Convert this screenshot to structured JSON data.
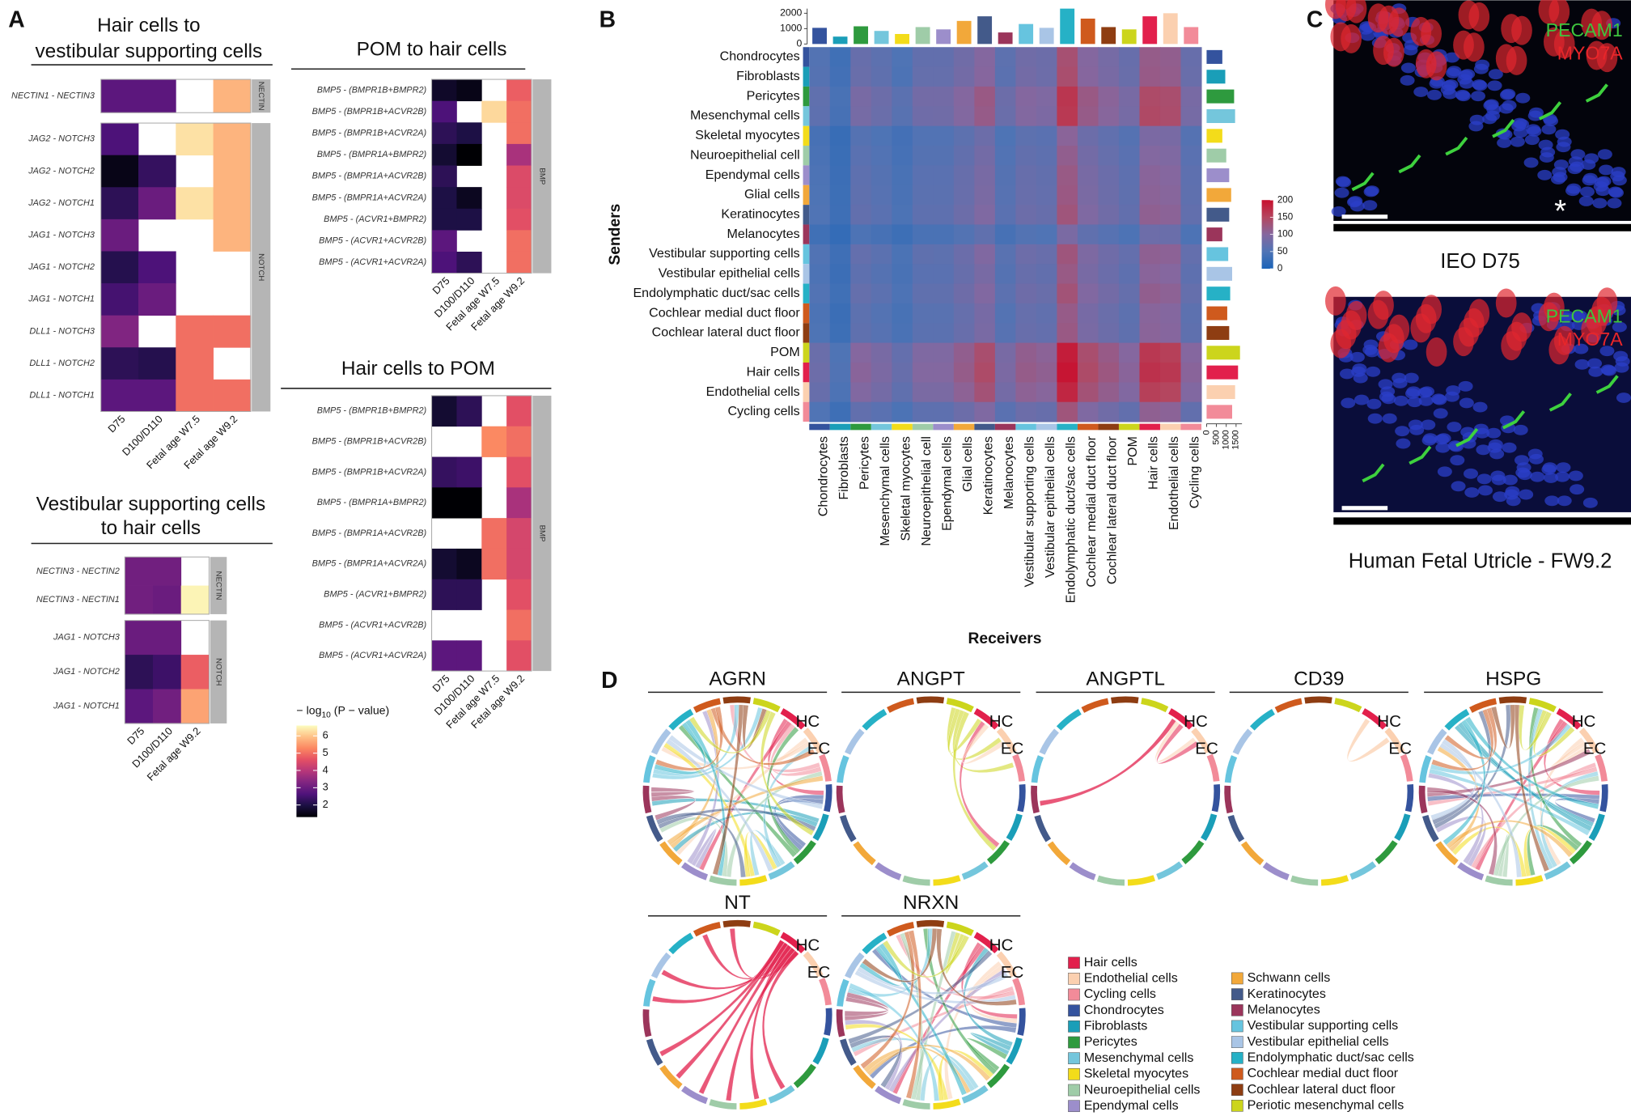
{
  "panel_labels": [
    "A",
    "B",
    "C",
    "D"
  ],
  "chart_data": [
    {
      "type": "heatmap",
      "title": [
        "Hair cells to",
        "vestibular supporting cells"
      ],
      "columns": [
        "D75",
        "D100/D110",
        "Fetal age W7.5",
        "Fetal age W9.2"
      ],
      "groups": [
        {
          "name": "NECTIN",
          "rows": [
            "NECTIN1 - NECTIN3"
          ],
          "values": [
            [
              2.8,
              2.8,
              null,
              5.8
            ]
          ]
        },
        {
          "name": "NOTCH",
          "rows": [
            "JAG2 - NOTCH3",
            "JAG2 - NOTCH2",
            "JAG2 - NOTCH1",
            "JAG1 - NOTCH3",
            "JAG1 - NOTCH2",
            "JAG1 - NOTCH1",
            "DLL1 - NOTCH3",
            "DLL1 - NOTCH2",
            "DLL1 - NOTCH1"
          ],
          "values": [
            [
              2.6,
              null,
              6.3,
              5.8
            ],
            [
              1.5,
              2.3,
              null,
              5.8
            ],
            [
              2.2,
              3.0,
              6.3,
              5.8
            ],
            [
              3.0,
              null,
              null,
              5.8
            ],
            [
              2.1,
              2.6,
              null,
              null
            ],
            [
              2.5,
              3.0,
              null,
              null
            ],
            [
              3.3,
              null,
              5.0,
              5.0
            ],
            [
              2.2,
              2.1,
              5.0,
              null
            ],
            [
              2.8,
              2.8,
              5.0,
              5.0
            ]
          ]
        }
      ]
    },
    {
      "type": "heatmap",
      "title": [
        "POM to hair cells"
      ],
      "columns": [
        "D75",
        "D100/D110",
        "Fetal age W7.5",
        "Fetal age W9.2"
      ],
      "groups": [
        {
          "name": "BMP",
          "rows": [
            "BMP5 - (BMPR1B+BMPR2)",
            "BMP5 - (BMPR1B+ACVR2B)",
            "BMP5 - (BMPR1B+ACVR2A)",
            "BMP5 - (BMPR1A+BMPR2)",
            "BMP5 - (BMPR1A+ACVR2B)",
            "BMP5 - (BMPR1A+ACVR2A)",
            "BMP5 - (ACVR1+BMPR2)",
            "BMP5 - (ACVR1+ACVR2B)",
            "BMP5 - (ACVR1+ACVR2A)"
          ],
          "values": [
            [
              1.7,
              1.5,
              null,
              4.8
            ],
            [
              2.6,
              null,
              6.2,
              5.0
            ],
            [
              2.2,
              2.0,
              null,
              5.0
            ],
            [
              1.8,
              1.3,
              null,
              3.8
            ],
            [
              2.2,
              null,
              null,
              4.5
            ],
            [
              2.0,
              1.6,
              null,
              4.5
            ],
            [
              2.0,
              2.0,
              null,
              4.6
            ],
            [
              2.8,
              null,
              null,
              5.0
            ],
            [
              2.6,
              2.2,
              null,
              5.0
            ]
          ]
        }
      ]
    },
    {
      "type": "heatmap",
      "title": [
        "Hair cells to POM"
      ],
      "columns": [
        "D75",
        "D100/D110",
        "Fetal age W7.5",
        "Fetal age W9.2"
      ],
      "groups": [
        {
          "name": "BMP",
          "rows": [
            "BMP5 - (BMPR1B+BMPR2)",
            "BMP5 - (BMPR1B+ACVR2B)",
            "BMP5 - (BMPR1B+ACVR2A)",
            "BMP5 - (BMPR1A+BMPR2)",
            "BMP5 - (BMPR1A+ACVR2B)",
            "BMP5 - (BMPR1A+ACVR2A)",
            "BMP5 - (ACVR1+BMPR2)",
            "BMP5 - (ACVR1+ACVR2B)",
            "BMP5 - (ACVR1+ACVR2A)"
          ],
          "values": [
            [
              1.8,
              2.2,
              null,
              4.6
            ],
            [
              null,
              null,
              5.3,
              5.0
            ],
            [
              2.3,
              2.4,
              null,
              4.6
            ],
            [
              1.2,
              1.2,
              null,
              3.8
            ],
            [
              null,
              null,
              5.0,
              4.4
            ],
            [
              1.8,
              1.6,
              5.0,
              4.4
            ],
            [
              2.2,
              2.2,
              null,
              4.6
            ],
            [
              null,
              null,
              null,
              5.0
            ],
            [
              2.8,
              2.8,
              null,
              4.6
            ]
          ]
        }
      ]
    },
    {
      "type": "heatmap",
      "title": [
        "Vestibular supporting cells",
        "to hair cells"
      ],
      "columns": [
        "D75",
        "D100/D110",
        "Fetal age W9.2"
      ],
      "groups": [
        {
          "name": "NECTIN",
          "rows": [
            "NECTIN3 - NECTIN2",
            "NECTIN3 - NECTIN1"
          ],
          "values": [
            [
              3.1,
              3.1,
              null
            ],
            [
              3.1,
              3.0,
              6.5
            ]
          ]
        },
        {
          "name": "NOTCH",
          "rows": [
            "JAG1 - NOTCH3",
            "JAG1 - NOTCH2",
            "JAG1 - NOTCH1"
          ],
          "values": [
            [
              3.0,
              3.0,
              null
            ],
            [
              2.2,
              2.4,
              4.8
            ],
            [
              2.8,
              3.1,
              5.6
            ]
          ]
        }
      ]
    },
    {
      "type": "heatmap",
      "y_label": "Senders",
      "x_label": "Receivers",
      "rows": [
        "Chondrocytes",
        "Fibroblasts",
        "Pericytes",
        "Mesenchymal cells",
        "Skeletal myocytes",
        "Neuroepithelial cell",
        "Ependymal cells",
        "Glial cells",
        "Keratinocytes",
        "Melanocytes",
        "Vestibular supporting cells",
        "Vestibular epithelial cells",
        "Endolymphatic duct/sac cells",
        "Cochlear medial duct floor",
        "Cochlear lateral duct floor",
        "POM",
        "Hair cells",
        "Endothelial cells",
        "Cycling cells"
      ],
      "columns": [
        "Chondrocytes",
        "Fibroblasts",
        "Pericytes",
        "Mesenchymal cells",
        "Skeletal myocytes",
        "Neuroepithelial cell",
        "Ependymal cells",
        "Glial cells",
        "Keratinocytes",
        "Melanocytes",
        "Vestibular supporting cells",
        "Vestibular epithelial cells",
        "Endolymphatic duct/sac cells",
        "Cochlear medial duct floor",
        "Cochlear lateral duct floor",
        "POM",
        "Hair cells",
        "Endothelial cells",
        "Cycling cells"
      ],
      "colors": [
        "#34539e",
        "#1a9eb8",
        "#2e9a3e",
        "#74c6dc",
        "#f3dc1a",
        "#9fcca8",
        "#9c8ecb",
        "#f2a83a",
        "#435a8a",
        "#9b355b",
        "#66c4df",
        "#a9c5e6",
        "#26b1c6",
        "#cf5a1d",
        "#8e3d12",
        "#ccd51c",
        "#e2204c",
        "#fbd0b0",
        "#f28b99"
      ],
      "values": [
        [
          54,
          36,
          72,
          63,
          50,
          68,
          68,
          81,
          99,
          63,
          81,
          77,
          135,
          99,
          86,
          72,
          117,
          113,
          72
        ],
        [
          56,
          38,
          74,
          65,
          48,
          70,
          70,
          83,
          101,
          61,
          83,
          78,
          138,
          101,
          88,
          74,
          119,
          115,
          74
        ],
        [
          66,
          44,
          88,
          77,
          61,
          83,
          83,
          99,
          121,
          77,
          99,
          94,
          165,
          121,
          105,
          88,
          143,
          138,
          88
        ],
        [
          64,
          42,
          86,
          75,
          58,
          80,
          81,
          97,
          118,
          75,
          97,
          92,
          162,
          118,
          102,
          86,
          145,
          140,
          86
        ],
        [
          42,
          28,
          56,
          49,
          39,
          53,
          53,
          63,
          77,
          49,
          63,
          60,
          105,
          77,
          67,
          56,
          91,
          88,
          56
        ],
        [
          45,
          30,
          60,
          53,
          41,
          56,
          56,
          68,
          83,
          53,
          68,
          64,
          113,
          83,
          71,
          60,
          98,
          94,
          60
        ],
        [
          48,
          32,
          64,
          56,
          44,
          60,
          60,
          72,
          88,
          56,
          72,
          68,
          120,
          88,
          76,
          64,
          104,
          100,
          64
        ],
        [
          49,
          33,
          65,
          57,
          45,
          61,
          61,
          73,
          90,
          57,
          73,
          69,
          122,
          90,
          77,
          65,
          106,
          102,
          65
        ],
        [
          51,
          34,
          68,
          60,
          47,
          64,
          64,
          77,
          94,
          60,
          77,
          72,
          128,
          94,
          81,
          68,
          111,
          106,
          68
        ],
        [
          36,
          24,
          48,
          42,
          33,
          45,
          45,
          54,
          66,
          42,
          54,
          51,
          90,
          66,
          57,
          48,
          78,
          75,
          48
        ],
        [
          52,
          35,
          69,
          61,
          46,
          65,
          63,
          76,
          95,
          59,
          78,
          73,
          127,
          93,
          80,
          69,
          110,
          107,
          69
        ],
        [
          48,
          32,
          64,
          56,
          44,
          60,
          60,
          72,
          88,
          56,
          72,
          68,
          120,
          88,
          76,
          64,
          104,
          100,
          64
        ],
        [
          53,
          36,
          70,
          62,
          48,
          66,
          66,
          79,
          96,
          62,
          79,
          74,
          131,
          96,
          83,
          70,
          113,
          108,
          70
        ],
        [
          47,
          31,
          63,
          55,
          43,
          59,
          59,
          71,
          87,
          55,
          71,
          67,
          118,
          87,
          75,
          63,
          103,
          99,
          63
        ],
        [
          49,
          33,
          65,
          57,
          45,
          61,
          61,
          73,
          89,
          57,
          73,
          69,
          121,
          89,
          77,
          65,
          105,
          101,
          65
        ],
        [
          75,
          50,
          100,
          88,
          69,
          94,
          94,
          113,
          138,
          88,
          113,
          106,
          188,
          138,
          119,
          100,
          163,
          156,
          100
        ],
        [
          78,
          52,
          104,
          91,
          72,
          98,
          98,
          117,
          143,
          91,
          117,
          111,
          195,
          143,
          124,
          104,
          169,
          163,
          104
        ],
        [
          72,
          48,
          96,
          84,
          66,
          90,
          90,
          108,
          132,
          84,
          108,
          102,
          180,
          132,
          114,
          96,
          156,
          150,
          96
        ],
        [
          51,
          34,
          68,
          60,
          47,
          64,
          64,
          77,
          94,
          60,
          77,
          72,
          128,
          94,
          81,
          68,
          111,
          106,
          68
        ]
      ],
      "zlim": [
        0,
        200
      ],
      "zticks": [
        0,
        50,
        100,
        150,
        200
      ]
    },
    {
      "type": "bar",
      "values": [
        1050,
        480,
        1150,
        850,
        650,
        1100,
        950,
        1500,
        1800,
        750,
        1300,
        1050,
        2300,
        1650,
        1100,
        950,
        1800,
        2000,
        1100
      ],
      "ylim": [
        0,
        2300
      ],
      "yticks": [
        0,
        1000,
        2000
      ]
    },
    {
      "type": "barh",
      "values": [
        800,
        950,
        1400,
        1450,
        800,
        1000,
        1150,
        1250,
        1150,
        800,
        1100,
        1300,
        1200,
        1050,
        1150,
        1700,
        1600,
        1450,
        1300
      ],
      "xlim": [
        0,
        1800
      ],
      "xticks": [
        0,
        500,
        1000,
        1500
      ]
    }
  ],
  "panel_a_scale": {
    "title_prefix": "− log",
    "title_subscript": "10",
    "title_suffix": " (P − value)",
    "zlim": [
      1.3,
      6.6
    ],
    "zticks": [
      2,
      3,
      4,
      5,
      6
    ]
  },
  "panel_c": {
    "images": [
      {
        "labels": [
          "PECAM1",
          "MYO7A"
        ],
        "marker": "*",
        "caption": "IEO D75"
      },
      {
        "labels": [
          "PECAM1",
          "MYO7A"
        ],
        "caption": "Human Fetal Utricle - FW9.2"
      }
    ]
  },
  "panel_d": {
    "chords": [
      {
        "title": "AGRN"
      },
      {
        "title": "ANGPT"
      },
      {
        "title": "ANGPTL"
      },
      {
        "title": "CD39"
      },
      {
        "title": "HSPG"
      },
      {
        "title": "NT"
      },
      {
        "title": "NRXN"
      }
    ],
    "ring_labels": [
      "HC",
      "EC"
    ],
    "legend": [
      {
        "name": "Hair cells",
        "color": "#e2204c"
      },
      {
        "name": "Endothelial cells",
        "color": "#fbd0b0"
      },
      {
        "name": "Cycling cells",
        "color": "#f28b99"
      },
      {
        "name": "Chondrocytes",
        "color": "#34539e"
      },
      {
        "name": "Fibroblasts",
        "color": "#1a9eb8"
      },
      {
        "name": "Pericytes",
        "color": "#2e9a3e"
      },
      {
        "name": "Mesenchymal cells",
        "color": "#74c6dc"
      },
      {
        "name": "Skeletal myocytes",
        "color": "#f3dc1a"
      },
      {
        "name": "Neuroepithelial cells",
        "color": "#9fcca8"
      },
      {
        "name": "Ependymal cells",
        "color": "#9c8ecb"
      },
      {
        "name": "Schwann cells",
        "color": "#f2a83a"
      },
      {
        "name": "Keratinocytes",
        "color": "#435a8a"
      },
      {
        "name": "Melanocytes",
        "color": "#9b355b"
      },
      {
        "name": "Vestibular supporting cells",
        "color": "#66c4df"
      },
      {
        "name": "Vestibular epithelial cells",
        "color": "#a9c5e6"
      },
      {
        "name": "Endolymphatic duct/sac cells",
        "color": "#26b1c6"
      },
      {
        "name": "Cochlear medial duct floor",
        "color": "#cf5a1d"
      },
      {
        "name": "Cochlear lateral duct floor",
        "color": "#8e3d12"
      },
      {
        "name": "Periotic mesenchymal cells",
        "color": "#ccd51c"
      }
    ]
  }
}
